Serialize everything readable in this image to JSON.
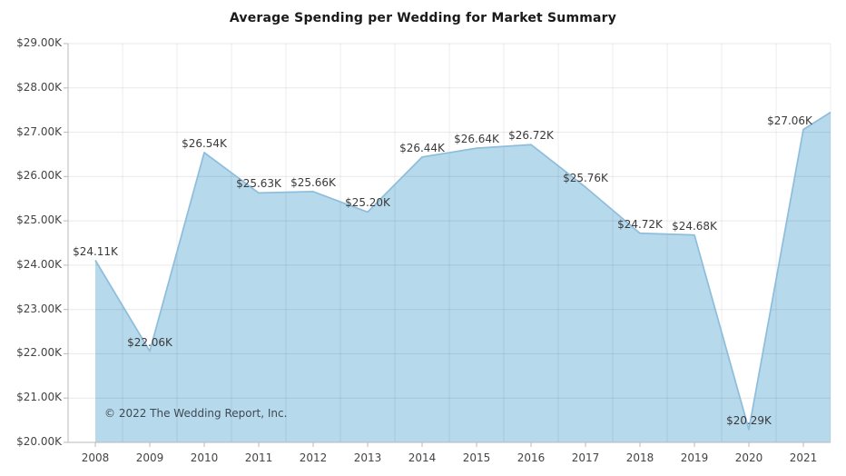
{
  "title": "Average Spending per Wedding for Market Summary",
  "copyright": "© 2022 The Wedding Report, Inc.",
  "chart_data": {
    "type": "area",
    "title": "Average Spending per Wedding for Market Summary",
    "categories": [
      "2008",
      "2009",
      "2010",
      "2011",
      "2012",
      "2013",
      "2014",
      "2015",
      "2016",
      "2017",
      "2018",
      "2019",
      "2020",
      "2021"
    ],
    "values": [
      24.11,
      22.06,
      26.54,
      25.63,
      25.66,
      25.2,
      26.44,
      26.64,
      26.72,
      25.76,
      24.72,
      24.68,
      20.29,
      27.06
    ],
    "value_labels": [
      "$24.11K",
      "$22.06K",
      "$26.54K",
      "$25.63K",
      "$25.66K",
      "$25.20K",
      "$26.44K",
      "$26.64K",
      "$26.72K",
      "$25.76K",
      "$24.72K",
      "$24.68K",
      "$20.29K",
      "$27.06K"
    ],
    "units": "USD thousands",
    "right_edge_value": 27.45,
    "xlabel": "",
    "ylabel": "",
    "ylim": [
      20,
      29
    ],
    "ytick_step": 1,
    "ytick_labels": [
      "$20.00K",
      "$21.00K",
      "$22.00K",
      "$23.00K",
      "$24.00K",
      "$25.00K",
      "$26.00K",
      "$27.00K",
      "$28.00K",
      "$29.00K"
    ],
    "grid": true,
    "legend": "none",
    "annotations": [
      "© 2022 The Wedding Report, Inc."
    ],
    "colors": {
      "area_fill": "#b7d9ec",
      "area_stroke": "#8fbedc",
      "gridline": "#e8e8e8",
      "axis": "#b9b9b9",
      "tick_text": "#444444",
      "title_text": "#1a1a1a",
      "background": "#ffffff"
    }
  }
}
